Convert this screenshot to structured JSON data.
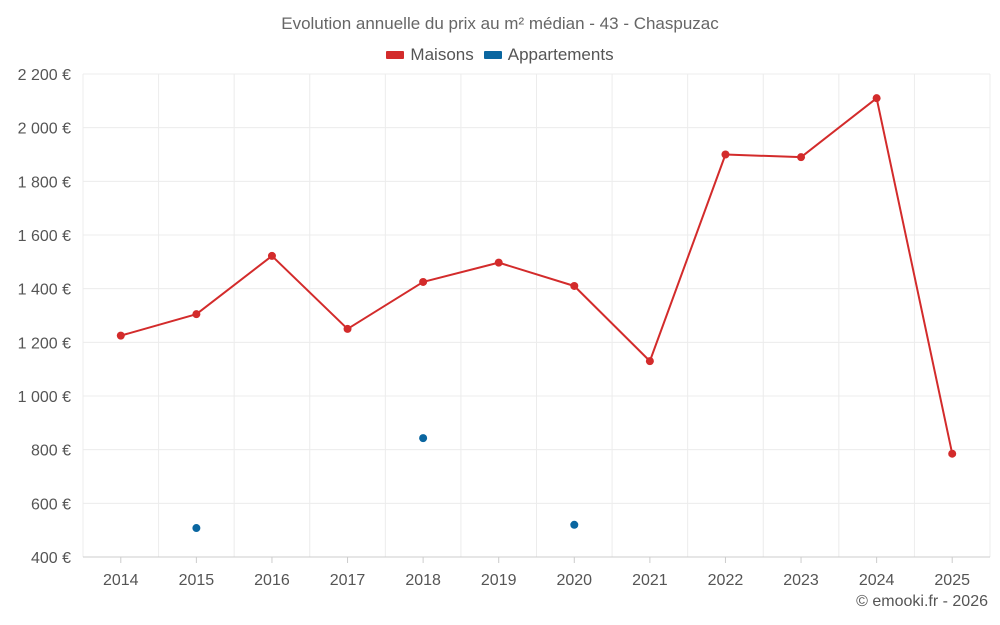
{
  "chart_data": {
    "type": "line",
    "title": "Evolution annuelle du prix au m² médian - 43 - Chaspuzac",
    "categories": [
      "2014",
      "2015",
      "2016",
      "2017",
      "2018",
      "2019",
      "2020",
      "2021",
      "2022",
      "2023",
      "2024",
      "2025"
    ],
    "series": [
      {
        "name": "Maisons",
        "color": "#d32b2b",
        "values": [
          1225,
          1305,
          1522,
          1250,
          1425,
          1497,
          1410,
          1130,
          1900,
          1890,
          2110,
          785
        ]
      },
      {
        "name": "Appartements",
        "color": "#0a66a0",
        "values": [
          null,
          508,
          null,
          null,
          843,
          null,
          520,
          null,
          null,
          null,
          null,
          null
        ]
      }
    ],
    "ylim": [
      400,
      2200
    ],
    "yticks": [
      400,
      600,
      800,
      1000,
      1200,
      1400,
      1600,
      1800,
      2000,
      2200
    ],
    "ytick_labels": [
      "400 €",
      "600 €",
      "800 €",
      "1 000 €",
      "1 200 €",
      "1 400 €",
      "1 600 €",
      "1 800 €",
      "2 000 €",
      "2 200 €"
    ],
    "xlabel": "",
    "ylabel": "",
    "grid": true,
    "legend_position": "top-center"
  },
  "credit": "© emooki.fr - 2026"
}
